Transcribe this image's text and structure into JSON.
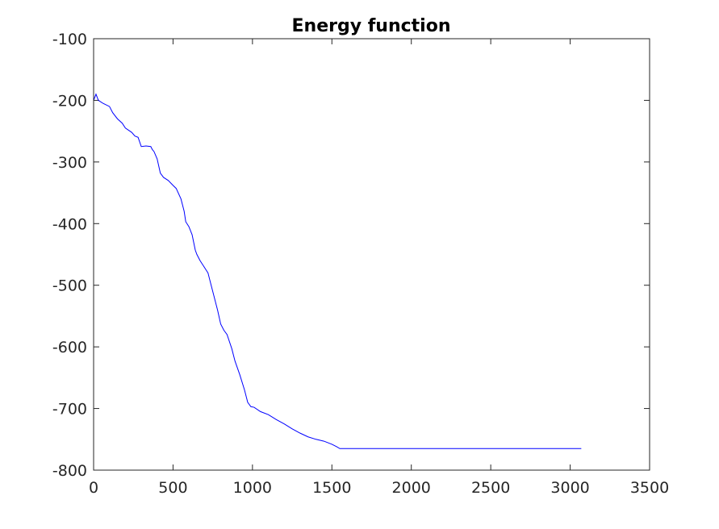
{
  "chart_data": {
    "type": "line",
    "title": "Energy function",
    "xlabel": "",
    "ylabel": "",
    "xlim": [
      0,
      3500
    ],
    "ylim": [
      -800,
      -100
    ],
    "xticks": [
      0,
      500,
      1000,
      1500,
      2000,
      2500,
      3000,
      3500
    ],
    "yticks": [
      -800,
      -700,
      -600,
      -500,
      -400,
      -300,
      -200,
      -100
    ],
    "xtick_labels": [
      "0",
      "500",
      "1000",
      "1500",
      "2000",
      "2500",
      "3000",
      "3500"
    ],
    "ytick_labels": [
      "-800",
      "-700",
      "-600",
      "-500",
      "-400",
      "-300",
      "-200",
      "-100"
    ],
    "grid": false,
    "line_color": "#0000ff",
    "series": [
      {
        "x": [
          0,
          15,
          30,
          60,
          100,
          120,
          150,
          180,
          200,
          240,
          260,
          280,
          300,
          330,
          360,
          370,
          380,
          400,
          420,
          440,
          470,
          500,
          520,
          550,
          570,
          580,
          600,
          620,
          640,
          650,
          670,
          690,
          720,
          740,
          760,
          780,
          800,
          820,
          840,
          870,
          890,
          920,
          950,
          970,
          990,
          1010,
          1050,
          1100,
          1150,
          1200,
          1250,
          1300,
          1350,
          1400,
          1450,
          1500,
          1530,
          1550,
          1600,
          2000,
          2500,
          3070
        ],
        "y": [
          -200,
          -190,
          -200,
          -205,
          -210,
          -220,
          -230,
          -237,
          -245,
          -252,
          -258,
          -260,
          -275,
          -274,
          -275,
          -280,
          -283,
          -295,
          -318,
          -325,
          -330,
          -338,
          -343,
          -360,
          -380,
          -397,
          -405,
          -418,
          -443,
          -450,
          -460,
          -468,
          -480,
          -500,
          -520,
          -540,
          -563,
          -573,
          -580,
          -603,
          -623,
          -645,
          -670,
          -690,
          -697,
          -698,
          -705,
          -710,
          -718,
          -725,
          -733,
          -740,
          -746,
          -750,
          -753,
          -758,
          -762,
          -765,
          -765,
          -765,
          -765,
          -765
        ]
      }
    ]
  }
}
